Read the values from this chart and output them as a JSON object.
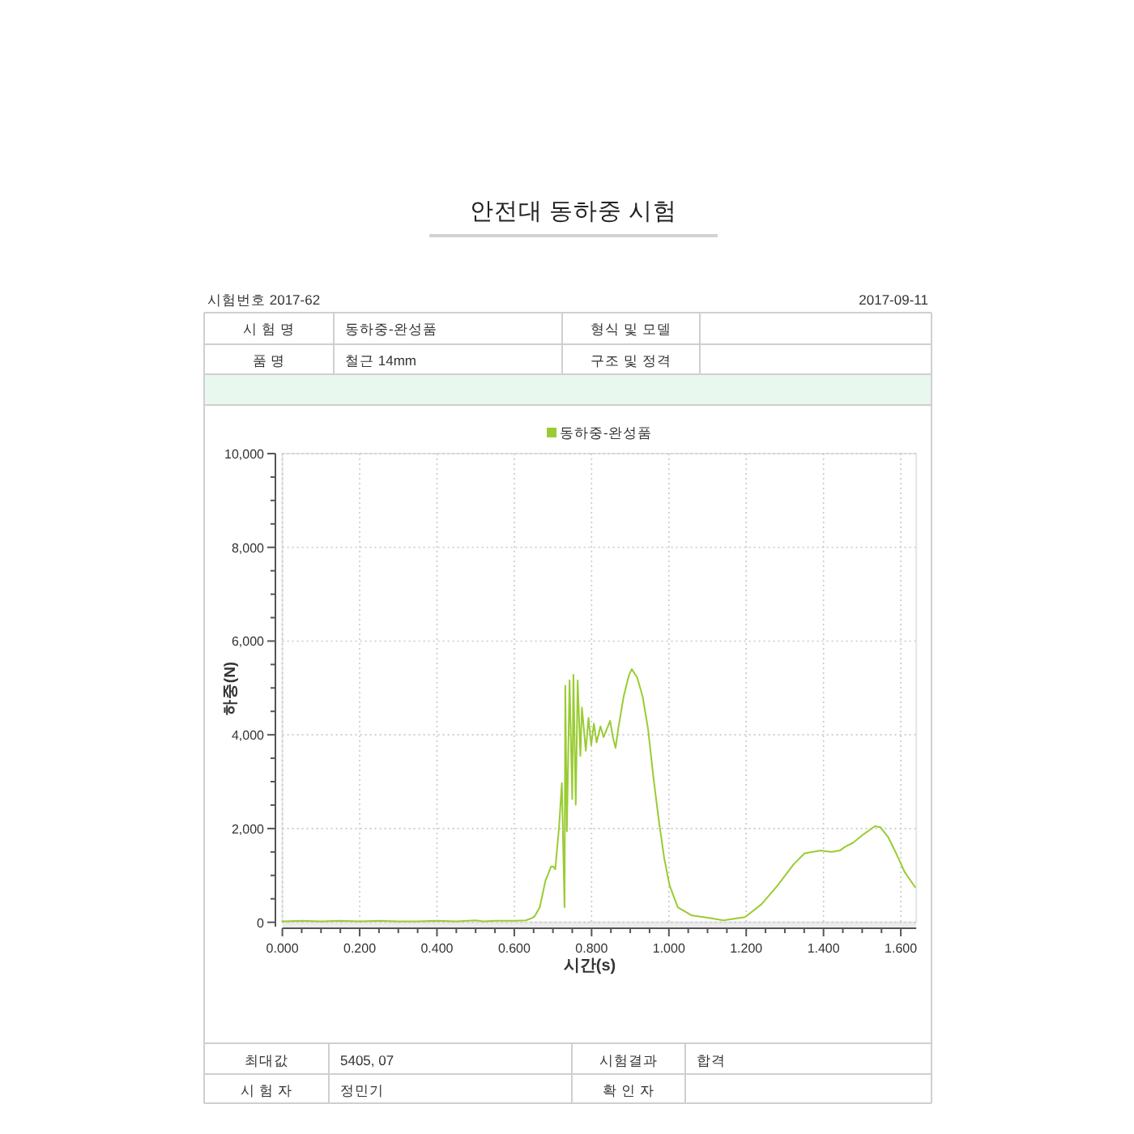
{
  "chart_data": {
    "type": "line",
    "title": "안전대 동하중 시험",
    "xlabel": "시간(s)",
    "ylabel": "하중(N)",
    "x": [
      0,
      0.05,
      0.1,
      0.15,
      0.2,
      0.25,
      0.3,
      0.35,
      0.4,
      0.45,
      0.5,
      0.52,
      0.55,
      0.6,
      0.63,
      0.646,
      0.653,
      0.666,
      0.681,
      0.687,
      0.695,
      0.701,
      0.706,
      0.716,
      0.723,
      0.73,
      0.732,
      0.736,
      0.743,
      0.75,
      0.753,
      0.759,
      0.764,
      0.771,
      0.775,
      0.785,
      0.792,
      0.799,
      0.806,
      0.813,
      0.823,
      0.831,
      0.848,
      0.855,
      0.862,
      0.869,
      0.883,
      0.897,
      0.904,
      0.918,
      0.932,
      0.946,
      0.96,
      0.974,
      0.988,
      1.002,
      1.023,
      1.058,
      1.107,
      1.141,
      1.197,
      1.239,
      1.281,
      1.323,
      1.351,
      1.393,
      1.421,
      1.442,
      1.456,
      1.477,
      1.504,
      1.533,
      1.547,
      1.567,
      1.588,
      1.61,
      1.637
    ],
    "series": [
      {
        "name": "동하중-완성품",
        "color": "#99cc33",
        "values": [
          20,
          30,
          20,
          30,
          20,
          30,
          20,
          20,
          30,
          20,
          40,
          20,
          30,
          30,
          40,
          90,
          130,
          320,
          900,
          1010,
          1190,
          1190,
          1130,
          2050,
          2970,
          320,
          5050,
          1940,
          5160,
          2630,
          5280,
          2510,
          5160,
          3550,
          4580,
          3660,
          4360,
          3780,
          4240,
          3840,
          4180,
          3950,
          4300,
          3950,
          3720,
          4130,
          4820,
          5280,
          5400,
          5220,
          4820,
          4130,
          3090,
          2170,
          1360,
          780,
          320,
          150,
          90,
          40,
          110,
          380,
          780,
          1240,
          1470,
          1530,
          1500,
          1530,
          1610,
          1700,
          1880,
          2050,
          2030,
          1820,
          1470,
          1070,
          750
        ]
      }
    ],
    "xlim": [
      0,
      1.64
    ],
    "ylim": [
      0,
      10000
    ],
    "xticks": [
      {
        "value": 0,
        "label": "0.000"
      },
      {
        "value": 0.05,
        "label": null
      },
      {
        "value": 0.1,
        "label": null
      },
      {
        "value": 0.15,
        "label": null
      },
      {
        "value": 0.2,
        "label": "0.200"
      },
      {
        "value": 0.25,
        "label": null
      },
      {
        "value": 0.3,
        "label": null
      },
      {
        "value": 0.35,
        "label": null
      },
      {
        "value": 0.4,
        "label": "0.400"
      },
      {
        "value": 0.45,
        "label": null
      },
      {
        "value": 0.5,
        "label": null
      },
      {
        "value": 0.55,
        "label": null
      },
      {
        "value": 0.6,
        "label": "0.600"
      },
      {
        "value": 0.65,
        "label": null
      },
      {
        "value": 0.7,
        "label": null
      },
      {
        "value": 0.75,
        "label": null
      },
      {
        "value": 0.8,
        "label": "0.800"
      },
      {
        "value": 0.85,
        "label": null
      },
      {
        "value": 0.9,
        "label": null
      },
      {
        "value": 0.95,
        "label": null
      },
      {
        "value": 1.0,
        "label": "1.000"
      },
      {
        "value": 1.05,
        "label": null
      },
      {
        "value": 1.1,
        "label": null
      },
      {
        "value": 1.15,
        "label": null
      },
      {
        "value": 1.2,
        "label": "1.200"
      },
      {
        "value": 1.25,
        "label": null
      },
      {
        "value": 1.3,
        "label": null
      },
      {
        "value": 1.35,
        "label": null
      },
      {
        "value": 1.4,
        "label": "1.400"
      },
      {
        "value": 1.45,
        "label": null
      },
      {
        "value": 1.5,
        "label": null
      },
      {
        "value": 1.55,
        "label": null
      },
      {
        "value": 1.6,
        "label": "1.600"
      }
    ],
    "yticks": [
      0,
      {
        "value": 500,
        "label": null
      },
      {
        "value": 1000,
        "label": null
      },
      {
        "value": 1500,
        "label": null
      },
      {
        "value": 2000,
        "label": "2,000"
      },
      {
        "value": 2500,
        "label": null
      },
      {
        "value": 3000,
        "label": null
      },
      {
        "value": 3500,
        "label": null
      },
      {
        "value": 4000,
        "label": "4,000"
      },
      {
        "value": 4500,
        "label": null
      },
      {
        "value": 5000,
        "label": null
      },
      {
        "value": 5500,
        "label": null
      },
      {
        "value": 6000,
        "label": "6,000"
      },
      {
        "value": 6500,
        "label": null
      },
      {
        "value": 7000,
        "label": null
      },
      {
        "value": 7500,
        "label": null
      },
      {
        "value": 8000,
        "label": "8,000"
      },
      {
        "value": 8500,
        "label": null
      },
      {
        "value": 9000,
        "label": null
      },
      {
        "value": 9500,
        "label": null
      },
      {
        "value": 10000,
        "label": "10,000"
      }
    ],
    "grid": true,
    "legend": "top",
    "annotations": [
      "시험번호 2017-62",
      "2017-09-11",
      "시 험 명",
      "동하중-완성품",
      "형식 및 모델",
      "품 명",
      "철근 14mm",
      "구조 및 정격",
      "최대값",
      "5405, 07",
      "시험결과",
      "합격",
      "시 험 자",
      "정민기",
      "확 인 자"
    ]
  }
}
